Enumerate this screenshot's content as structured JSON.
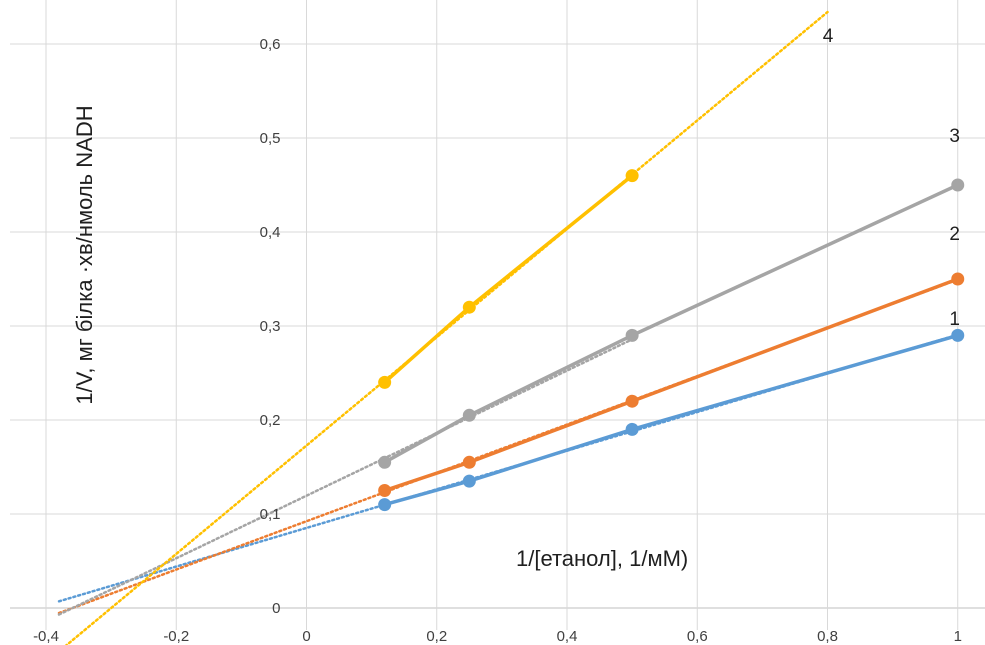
{
  "chart_data": {
    "type": "line",
    "title": "",
    "xlabel": "1/[етанол], 1/мМ)",
    "ylabel": "1/V, мг білка ·хв/нмоль NADH",
    "xlim": [
      -0.4,
      1.05
    ],
    "ylim": [
      -0.03,
      0.63
    ],
    "x_ticks": [
      -0.4,
      -0.2,
      0,
      0.2,
      0.4,
      0.6,
      0.8,
      1
    ],
    "x_tick_labels": [
      "-0,4",
      "-0,2",
      "0",
      "0,2",
      "0,4",
      "0,6",
      "0,8",
      "1"
    ],
    "y_ticks": [
      0,
      0.1,
      0.2,
      0.3,
      0.4,
      0.5,
      0.6
    ],
    "y_tick_labels": [
      "0",
      "0,1",
      "0,2",
      "0,3",
      "0,4",
      "0,5",
      "0,6"
    ],
    "grid": true,
    "legend": "none",
    "series": [
      {
        "label": "1",
        "color": "#5B9BD5",
        "x": [
          0.12,
          0.25,
          0.5,
          1.0
        ],
        "y": [
          0.11,
          0.135,
          0.19,
          0.29
        ],
        "trend_x": [
          -0.38,
          1.0
        ]
      },
      {
        "label": "2",
        "color": "#ED7D31",
        "x": [
          0.12,
          0.25,
          0.5,
          1.0
        ],
        "y": [
          0.125,
          0.155,
          0.22,
          0.35
        ],
        "trend_x": [
          -0.38,
          1.0
        ]
      },
      {
        "label": "3",
        "color": "#A5A5A5",
        "x": [
          0.12,
          0.25,
          0.5,
          1.0
        ],
        "y": [
          0.155,
          0.205,
          0.29,
          0.45
        ],
        "trend_x": [
          -0.38,
          0.5
        ]
      },
      {
        "label": "4",
        "color": "#FFC000",
        "x": [
          0.12,
          0.25,
          0.5
        ],
        "y": [
          0.24,
          0.32,
          0.46
        ],
        "trend_x": [
          -0.4,
          0.8
        ]
      }
    ]
  }
}
